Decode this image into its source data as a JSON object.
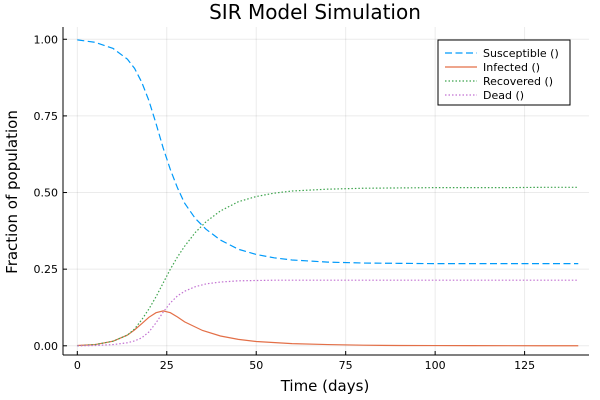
{
  "chart_data": {
    "type": "line",
    "title": "SIR Model Simulation",
    "xlabel": "Time (days)",
    "ylabel": "Fraction of population",
    "xlim": [
      -4,
      143
    ],
    "ylim": [
      -0.03,
      1.04
    ],
    "xticks": [
      0,
      25,
      50,
      75,
      100,
      125
    ],
    "yticks": [
      0.0,
      0.25,
      0.5,
      0.75,
      1.0
    ],
    "ytick_labels": [
      "0.00",
      "0.25",
      "0.50",
      "0.75",
      "1.00"
    ],
    "grid": true,
    "legend_position": "top-right",
    "series": [
      {
        "name": "Susceptible ()",
        "color": "#009AFA",
        "dash": "dashed",
        "x": [
          0,
          5,
          10,
          14,
          16,
          18,
          20,
          22,
          24,
          26,
          28,
          30,
          33,
          36,
          40,
          45,
          50,
          55,
          60,
          70,
          80,
          90,
          100,
          110,
          120,
          130,
          140
        ],
        "y": [
          0.998,
          0.99,
          0.97,
          0.935,
          0.905,
          0.86,
          0.8,
          0.725,
          0.645,
          0.575,
          0.515,
          0.465,
          0.415,
          0.38,
          0.345,
          0.315,
          0.298,
          0.287,
          0.28,
          0.273,
          0.27,
          0.269,
          0.268,
          0.268,
          0.268,
          0.268,
          0.268
        ]
      },
      {
        "name": "Infected ()",
        "color": "#E36F47",
        "dash": "solid",
        "x": [
          0,
          5,
          10,
          14,
          16,
          18,
          20,
          22,
          24,
          26,
          28,
          30,
          35,
          40,
          45,
          50,
          60,
          70,
          80,
          90,
          100,
          110,
          120,
          130,
          140
        ],
        "y": [
          0.001,
          0.004,
          0.015,
          0.035,
          0.052,
          0.072,
          0.093,
          0.108,
          0.114,
          0.108,
          0.094,
          0.078,
          0.05,
          0.032,
          0.021,
          0.014,
          0.007,
          0.004,
          0.002,
          0.001,
          0.0008,
          0.0005,
          0.0003,
          0.0002,
          0.0001
        ]
      },
      {
        "name": "Recovered ()",
        "color": "#3EA44E",
        "dash": "dotted",
        "x": [
          0,
          5,
          10,
          14,
          16,
          18,
          20,
          22,
          24,
          26,
          28,
          30,
          33,
          36,
          40,
          45,
          50,
          55,
          60,
          70,
          80,
          90,
          100,
          110,
          120,
          130,
          140
        ],
        "y": [
          0.0,
          0.004,
          0.015,
          0.035,
          0.055,
          0.085,
          0.12,
          0.16,
          0.205,
          0.25,
          0.29,
          0.325,
          0.37,
          0.405,
          0.44,
          0.47,
          0.487,
          0.498,
          0.505,
          0.511,
          0.514,
          0.515,
          0.516,
          0.516,
          0.516,
          0.517,
          0.517
        ]
      },
      {
        "name": "Dead ()",
        "color": "#C271D2",
        "dash": "dotted",
        "x": [
          0,
          5,
          10,
          14,
          16,
          18,
          20,
          22,
          24,
          26,
          28,
          30,
          33,
          36,
          40,
          45,
          50,
          55,
          60,
          70,
          80,
          90,
          100,
          110,
          120,
          130,
          140
        ],
        "y": [
          0.0,
          0.001,
          0.004,
          0.01,
          0.016,
          0.026,
          0.045,
          0.075,
          0.11,
          0.14,
          0.163,
          0.178,
          0.193,
          0.202,
          0.208,
          0.212,
          0.213,
          0.214,
          0.214,
          0.214,
          0.214,
          0.214,
          0.214,
          0.214,
          0.214,
          0.214,
          0.214
        ]
      }
    ]
  }
}
